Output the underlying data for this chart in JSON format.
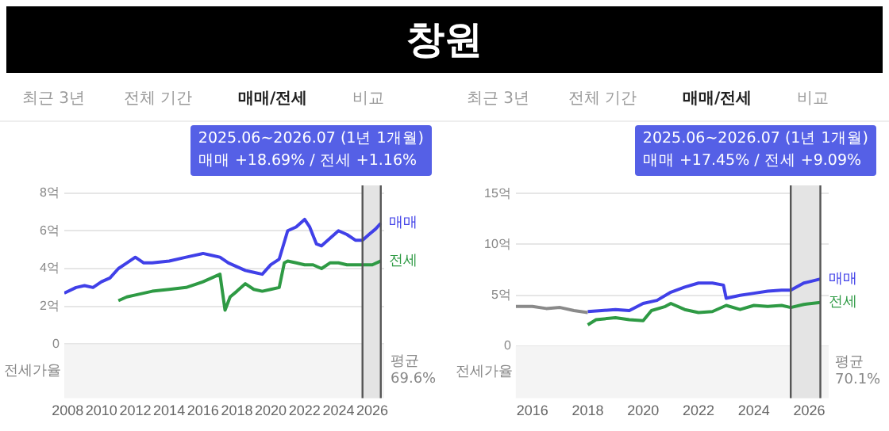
{
  "chart_data": [
    {
      "type": "line",
      "title": "창원",
      "annotations": [
        "최근 3년",
        "전체 기간",
        "매매/전세",
        "비교",
        "2025.06~2026.07 (1년 1개월)",
        "매매 +18.69%  /  전세 +1.16%",
        "전세가율",
        "평균",
        "69.6%"
      ],
      "xlim": [
        2007.8,
        2026.7
      ],
      "xticks": [
        2008,
        2010,
        2012,
        2014,
        2016,
        2018,
        2020,
        2022,
        2024,
        2026
      ],
      "ylim": [
        -2.85,
        8.4
      ],
      "yticks": [
        {
          "value": 0,
          "label": "0"
        },
        {
          "value": 2,
          "label": "2억"
        },
        {
          "value": 4,
          "label": "4억"
        },
        {
          "value": 6,
          "label": "6억"
        },
        {
          "value": 8,
          "label": "8억"
        }
      ],
      "grid": "y",
      "legend": false,
      "marker": "none",
      "line_style": "solid",
      "bands": [
        {
          "axis": "y",
          "from": -2.85,
          "to": 0,
          "color": "#f4f4f4"
        },
        {
          "axis": "x",
          "from": 2025.42,
          "to": 2026.5,
          "color": "#e4e4e4"
        }
      ],
      "ref_lines": [
        {
          "axis": "x",
          "value": 2025.42,
          "color": "#555555"
        },
        {
          "axis": "x",
          "value": 2026.5,
          "color": "#555555"
        }
      ],
      "series": [
        {
          "name": "매매",
          "color": "#4040e8",
          "x": [
            2007.8,
            2008.5,
            2009,
            2009.5,
            2010,
            2010.5,
            2011,
            2011.5,
            2012,
            2012.5,
            2013,
            2014,
            2015,
            2016,
            2016.5,
            2017,
            2017.5,
            2018,
            2018.5,
            2019,
            2019.5,
            2020,
            2020.5,
            2021,
            2021.5,
            2022,
            2022.3,
            2022.7,
            2023,
            2023.5,
            2024,
            2024.5,
            2025,
            2025.42,
            2025.8,
            2026.2,
            2026.5
          ],
          "values": [
            2.7,
            3.0,
            3.1,
            3.0,
            3.3,
            3.5,
            4.0,
            4.3,
            4.6,
            4.3,
            4.3,
            4.4,
            4.6,
            4.8,
            4.7,
            4.6,
            4.3,
            4.1,
            3.9,
            3.8,
            3.7,
            4.2,
            4.5,
            6.0,
            6.2,
            6.6,
            6.2,
            5.3,
            5.2,
            5.6,
            6.0,
            5.8,
            5.5,
            5.5,
            5.8,
            6.1,
            6.4
          ]
        },
        {
          "name": "전세",
          "color": "#2e9a44",
          "x": [
            2011,
            2011.5,
            2012,
            2013,
            2014,
            2015,
            2016,
            2016.5,
            2017,
            2017.3,
            2017.6,
            2018,
            2018.5,
            2019,
            2019.5,
            2020,
            2020.5,
            2020.8,
            2021,
            2021.5,
            2022,
            2022.5,
            2023,
            2023.5,
            2024,
            2024.5,
            2025,
            2025.42,
            2026,
            2026.5
          ],
          "values": [
            2.3,
            2.5,
            2.6,
            2.8,
            2.9,
            3.0,
            3.3,
            3.5,
            3.7,
            1.8,
            2.5,
            2.8,
            3.2,
            2.9,
            2.8,
            2.9,
            3.0,
            4.3,
            4.4,
            4.3,
            4.2,
            4.2,
            4.0,
            4.3,
            4.3,
            4.2,
            4.2,
            4.2,
            4.2,
            4.4
          ]
        }
      ]
    },
    {
      "type": "line",
      "annotations": [
        "최근 3년",
        "전체 기간",
        "매매/전세",
        "비교",
        "2025.06~2026.07 (1년 1개월)",
        "매매 +17.45%  /  전세 +9.09%",
        "전세가율",
        "평균",
        "70.1%"
      ],
      "xlim": [
        2015.4,
        2026.7
      ],
      "xticks": [
        2016,
        2018,
        2020,
        2022,
        2024,
        2026
      ],
      "ylim": [
        -5.1,
        15.8
      ],
      "yticks": [
        {
          "value": 0,
          "label": "0"
        },
        {
          "value": 5,
          "label": "5억"
        },
        {
          "value": 10,
          "label": "10억"
        },
        {
          "value": 15,
          "label": "15억"
        }
      ],
      "grid": "y",
      "legend": false,
      "marker": "none",
      "line_style": "solid",
      "bands": [
        {
          "axis": "y",
          "from": -5.1,
          "to": 0,
          "color": "#f4f4f4"
        },
        {
          "axis": "x",
          "from": 2025.33,
          "to": 2026.4,
          "color": "#e4e4e4"
        }
      ],
      "ref_lines": [
        {
          "axis": "x",
          "value": 2025.33,
          "color": "#555555"
        },
        {
          "axis": "x",
          "value": 2026.4,
          "color": "#555555"
        }
      ],
      "series": [
        {
          "color": "#8a8a8a",
          "x": [
            2015.4,
            2016,
            2016.5,
            2017,
            2017.5,
            2018
          ],
          "values": [
            3.9,
            3.9,
            3.7,
            3.8,
            3.5,
            3.3
          ]
        },
        {
          "name": "매매",
          "color": "#4040e8",
          "x": [
            2018,
            2018.5,
            2019,
            2019.5,
            2020,
            2020.5,
            2021,
            2021.5,
            2022,
            2022.5,
            2022.9,
            2023,
            2023.5,
            2024,
            2024.5,
            2025,
            2025.33,
            2025.8,
            2026.4
          ],
          "values": [
            3.4,
            3.5,
            3.6,
            3.5,
            4.2,
            4.5,
            5.3,
            5.8,
            6.2,
            6.2,
            6.0,
            4.7,
            5.0,
            5.2,
            5.4,
            5.5,
            5.5,
            6.2,
            6.6
          ]
        },
        {
          "name": "전세",
          "color": "#2e9a44",
          "x": [
            2018,
            2018.3,
            2019,
            2019.5,
            2020,
            2020.3,
            2020.8,
            2021,
            2021.5,
            2022,
            2022.5,
            2023,
            2023.5,
            2024,
            2024.5,
            2025,
            2025.33,
            2025.8,
            2026.4
          ],
          "values": [
            2.1,
            2.6,
            2.8,
            2.6,
            2.5,
            3.5,
            3.9,
            4.2,
            3.6,
            3.3,
            3.4,
            4.0,
            3.6,
            4.0,
            3.9,
            4.0,
            3.8,
            4.1,
            4.3
          ]
        }
      ]
    }
  ]
}
